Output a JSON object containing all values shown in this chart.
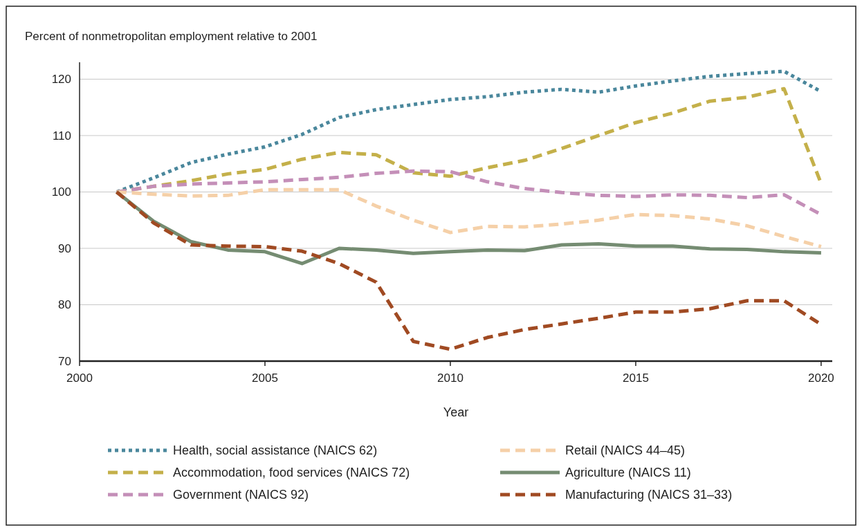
{
  "chart_data": {
    "type": "line",
    "ylabel": "Percent of nonmetropolitan employment relative to 2001",
    "xlabel": "Year",
    "x": [
      2001,
      2002,
      2003,
      2004,
      2005,
      2006,
      2007,
      2008,
      2009,
      2010,
      2011,
      2012,
      2013,
      2014,
      2015,
      2016,
      2017,
      2018,
      2019,
      2020
    ],
    "xlim": [
      2000,
      2020.3
    ],
    "xticks": [
      2000,
      2005,
      2010,
      2015,
      2020
    ],
    "ylim": [
      70,
      123
    ],
    "yticks": [
      70,
      80,
      90,
      100,
      110,
      120
    ],
    "grid": "y",
    "legend": "bottom",
    "series": [
      {
        "name": "Health, social assistance (NAICS 62)",
        "color": "#4a879c",
        "line_style": "dotted",
        "values": [
          100,
          102.5,
          105.2,
          106.7,
          108,
          110.2,
          113.2,
          114.6,
          115.5,
          116.4,
          116.9,
          117.7,
          118.2,
          117.7,
          118.8,
          119.7,
          120.5,
          121,
          121.4,
          117.8
        ]
      },
      {
        "name": "Accommodation, food services (NAICS 72)",
        "color": "#c4b04a",
        "line_style": "dashed",
        "values": [
          100,
          101,
          102,
          103.2,
          104,
          105.8,
          107,
          106.6,
          103.4,
          102.8,
          104.3,
          105.6,
          107.7,
          110,
          112.3,
          114,
          116.1,
          116.8,
          118.3,
          101.5
        ]
      },
      {
        "name": "Government (NAICS 92)",
        "color": "#c48fb8",
        "line_style": "dashed",
        "values": [
          100,
          101,
          101.4,
          101.6,
          101.8,
          102.2,
          102.6,
          103.3,
          103.7,
          103.6,
          101.8,
          100.6,
          99.9,
          99.4,
          99.2,
          99.5,
          99.4,
          99,
          99.5,
          96
        ]
      },
      {
        "name": "Retail (NAICS 44–45)",
        "color": "#f5d0a8",
        "line_style": "dashed",
        "values": [
          100,
          99.6,
          99.3,
          99.4,
          100.4,
          100.4,
          100.4,
          97.5,
          95,
          92.8,
          93.9,
          93.8,
          94.3,
          95,
          96,
          95.8,
          95.2,
          94,
          92.1,
          90.3
        ]
      },
      {
        "name": "Agriculture (NAICS 11)",
        "color": "#758c72",
        "line_style": "solid",
        "values": [
          100,
          94.8,
          91.2,
          89.7,
          89.4,
          87.3,
          90,
          89.7,
          89.1,
          89.4,
          89.7,
          89.6,
          90.6,
          90.8,
          90.4,
          90.4,
          89.9,
          89.8,
          89.4,
          89.2
        ]
      },
      {
        "name": "Manufacturing (NAICS 31–33)",
        "color": "#a04a22",
        "line_style": "dashed",
        "values": [
          100,
          94.5,
          90.6,
          90.4,
          90.3,
          89.5,
          87.3,
          84,
          73.5,
          72.1,
          74.2,
          75.6,
          76.6,
          77.6,
          78.7,
          78.7,
          79.3,
          80.7,
          80.7,
          76.5
        ]
      }
    ]
  }
}
